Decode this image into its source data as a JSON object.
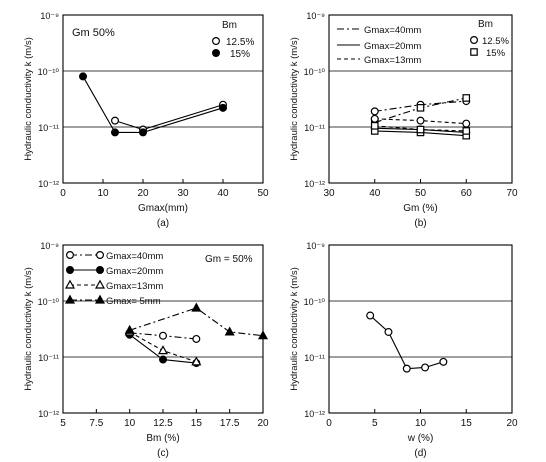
{
  "figure": {
    "y_tick_labels": [
      "10⁻⁹",
      "10⁻¹⁰",
      "10⁻¹¹",
      "10⁻¹²"
    ]
  },
  "chart_data": [
    {
      "panel": "(a)",
      "type": "line",
      "xlabel": "Gmax(mm)",
      "ylabel": "Hydraulic conductivity  k (m/s)",
      "xlim": [
        0,
        50
      ],
      "ylim_log10": [
        -12,
        -9
      ],
      "x_ticks": [
        "0",
        "10",
        "20",
        "30",
        "40",
        "50"
      ],
      "annotation": "Gm 50%",
      "legend": {
        "title": "Bm",
        "position": "top-right",
        "entries": [
          "12.5%",
          "15%"
        ]
      },
      "series": [
        {
          "name": "12.5%",
          "marker": "open-circle",
          "line": "solid",
          "x": [
            13,
            20,
            40
          ],
          "y": [
            1.3e-11,
            9e-12,
            2.5e-11
          ]
        },
        {
          "name": "15%",
          "marker": "filled-circle",
          "line": "solid",
          "x": [
            5,
            13,
            20,
            40
          ],
          "y": [
            8e-11,
            8e-12,
            8e-12,
            2.2e-11
          ]
        }
      ]
    },
    {
      "panel": "(b)",
      "type": "line",
      "xlabel": "Gm (%)",
      "ylabel": "Hydraulic conductivity  k (m/s)",
      "xlim": [
        30,
        70
      ],
      "ylim_log10": [
        -12,
        -9
      ],
      "x_ticks": [
        "30",
        "40",
        "50",
        "60",
        "70"
      ],
      "legend": {
        "title": "Bm",
        "position": "top-right",
        "line_entries": [
          "Gmax=40mm",
          "Gmax=20mm",
          "Gmax=13mm"
        ],
        "marker_entries": [
          "12.5%",
          "15%"
        ]
      },
      "series": [
        {
          "name": "Gmax=40mm",
          "marker": "open-circle",
          "line": "dash-dot",
          "x": [
            40,
            50,
            60
          ],
          "y": [
            1.9e-11,
            2.5e-11,
            2.9e-11
          ]
        },
        {
          "name": "Gmax=40mm",
          "marker": "open-square",
          "line": "dash-dot",
          "x": [
            40,
            50,
            60
          ],
          "y": [
            1.2e-11,
            2.2e-11,
            3.3e-11
          ]
        },
        {
          "name": "Gmax=20mm",
          "marker": "open-circle",
          "line": "solid",
          "x": [
            40,
            50,
            60
          ],
          "y": [
            9.5e-12,
            9e-12,
            8e-12
          ]
        },
        {
          "name": "Gmax=20mm",
          "marker": "open-square",
          "line": "solid",
          "x": [
            40,
            50,
            60
          ],
          "y": [
            8.5e-12,
            8e-12,
            7e-12
          ]
        },
        {
          "name": "Gmax=13mm",
          "marker": "open-circle",
          "line": "dashed",
          "x": [
            40,
            50,
            60
          ],
          "y": [
            1.4e-11,
            1.3e-11,
            1.15e-11
          ]
        },
        {
          "name": "Gmax=13mm",
          "marker": "open-square",
          "line": "dashed",
          "x": [
            40,
            50,
            60
          ],
          "y": [
            1.05e-11,
            9e-12,
            8.5e-12
          ]
        }
      ]
    },
    {
      "panel": "(c)",
      "type": "line",
      "xlabel": "Bm (%)",
      "ylabel": "Hydraulic conductivity  k (m/s)",
      "xlim": [
        5,
        20
      ],
      "ylim_log10": [
        -12,
        -9
      ],
      "x_ticks": [
        "5",
        "7.5",
        "10",
        "12.5",
        "15",
        "17.5",
        "20"
      ],
      "annotation": "Gm = 50%",
      "legend": {
        "position": "top-left",
        "entries": [
          "Gmax=40mm",
          "Gmax=20mm",
          "Gmax=13mm",
          "Gmax=  5mm"
        ]
      },
      "series": [
        {
          "name": "Gmax=40mm",
          "marker": "open-circle",
          "line": "dash-dot",
          "x": [
            10,
            12.5,
            15
          ],
          "y": [
            2.7e-11,
            2.4e-11,
            2.1e-11
          ]
        },
        {
          "name": "Gmax=20mm",
          "marker": "filled-circle",
          "line": "solid",
          "x": [
            10,
            12.5,
            15
          ],
          "y": [
            2.5e-11,
            9e-12,
            7.8e-12
          ]
        },
        {
          "name": "Gmax=13mm",
          "marker": "open-triangle",
          "line": "dashed",
          "x": [
            10,
            12.5,
            15
          ],
          "y": [
            2.8e-11,
            1.3e-11,
            8.2e-12
          ]
        },
        {
          "name": "Gmax=  5mm",
          "marker": "filled-triangle",
          "line": "dash-dot",
          "x": [
            10,
            15,
            17.5,
            20
          ],
          "y": [
            3e-11,
            7.5e-11,
            2.8e-11,
            2.4e-11
          ]
        }
      ]
    },
    {
      "panel": "(d)",
      "type": "line",
      "xlabel": "w  (%)",
      "ylabel": "Hydraulic conductivity  k (m/s)",
      "xlim": [
        0,
        20
      ],
      "ylim_log10": [
        -12,
        -9
      ],
      "x_ticks": [
        "0",
        "5",
        "10",
        "15",
        "20"
      ],
      "series": [
        {
          "marker": "open-circle",
          "line": "solid",
          "x": [
            4.5,
            6.5,
            8.5,
            10.5,
            12.5
          ],
          "y": [
            5.5e-11,
            2.8e-11,
            6.2e-12,
            6.5e-12,
            8.2e-12
          ]
        }
      ]
    }
  ]
}
